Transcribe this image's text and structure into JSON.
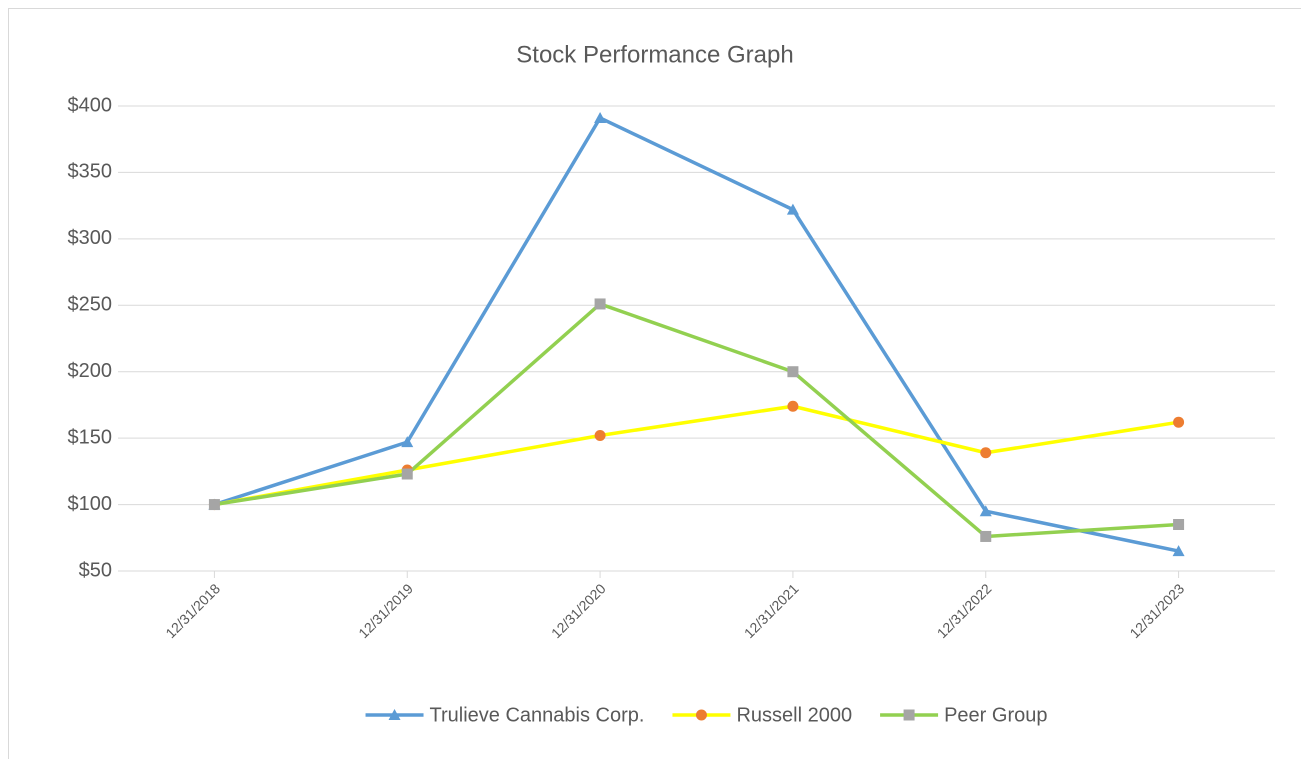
{
  "chart_data": {
    "type": "line",
    "title": "Stock Performance Graph",
    "categories": [
      "12/31/2018",
      "12/31/2019",
      "12/31/2020",
      "12/31/2021",
      "12/31/2022",
      "12/31/2023"
    ],
    "series": [
      {
        "name": "Trulieve Cannabis Corp.",
        "color": "#5b9bd5",
        "marker": "triangle",
        "marker_color": "#5b9bd5",
        "values": [
          100,
          147,
          391,
          322,
          95,
          65
        ]
      },
      {
        "name": "Russell 2000",
        "color": "#ffff00",
        "marker": "circle",
        "marker_color": "#ed7d31",
        "values": [
          100,
          126,
          152,
          174,
          139,
          162
        ]
      },
      {
        "name": "Peer Group",
        "color": "#92d050",
        "marker": "square",
        "marker_color": "#a5a5a5",
        "values": [
          100,
          123,
          251,
          200,
          76,
          85
        ]
      }
    ],
    "ylim": [
      50,
      400
    ],
    "yticks": [
      {
        "value": 50,
        "label": "$50"
      },
      {
        "value": 100,
        "label": "$100"
      },
      {
        "value": 150,
        "label": "$150"
      },
      {
        "value": 200,
        "label": "$200"
      },
      {
        "value": 250,
        "label": "$250"
      },
      {
        "value": 300,
        "label": "$300"
      },
      {
        "value": 350,
        "label": "$350"
      },
      {
        "value": 400,
        "label": "$400"
      }
    ],
    "grid": true,
    "legend": "bottom"
  }
}
